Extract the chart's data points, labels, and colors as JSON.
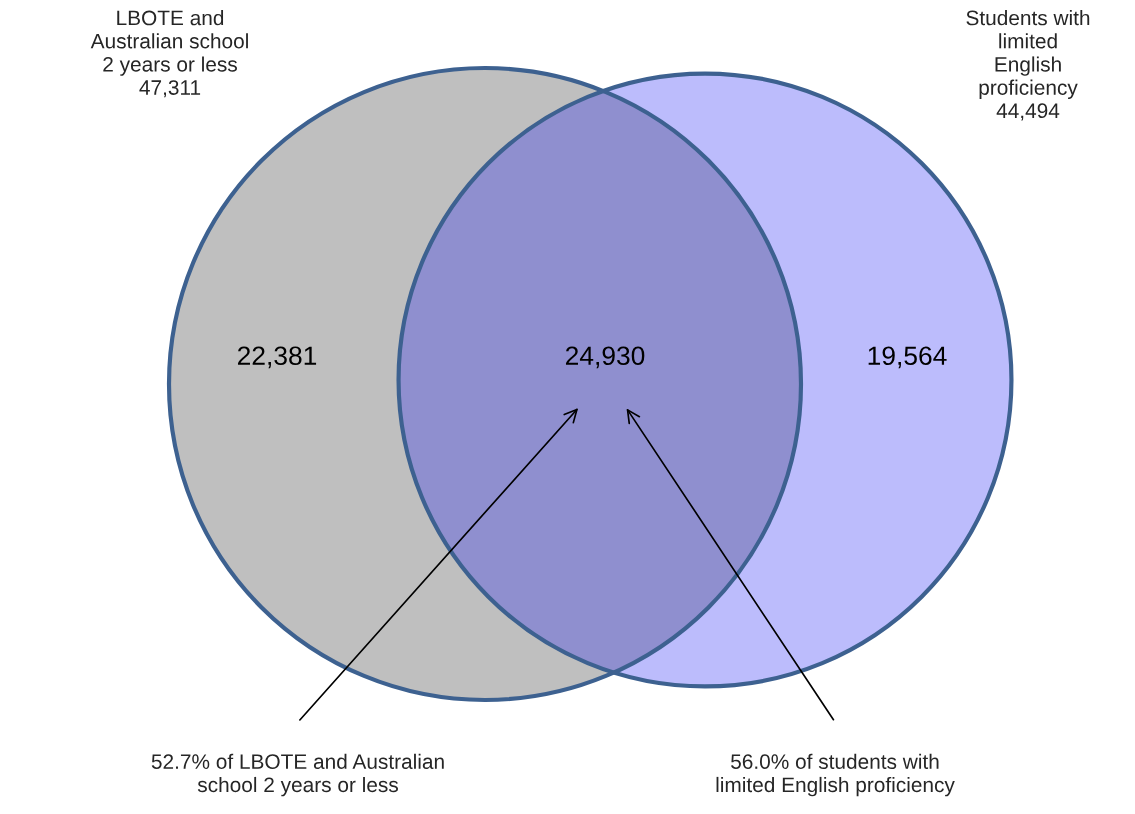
{
  "chart_data": {
    "type": "other",
    "categories": [
      null,
      null,
      null
    ],
    "values": [
      22381,
      24930,
      19564
    ],
    "value_labels": [
      "22,381",
      "24,930",
      "19,564"
    ],
    "colors": [
      "#bfbfbf",
      "#8f8fcf",
      "#bcbcfc"
    ],
    "annotations": [
      "LBOTE and\nAustralian school\n2 years or less\n47,311",
      "Students with\nlimited\nEnglish\nproficiency\n44,494",
      "52.7% of LBOTE and Australian\nschool 2 years or less",
      "56.0% of students with\nlimited English proficiency"
    ]
  }
}
